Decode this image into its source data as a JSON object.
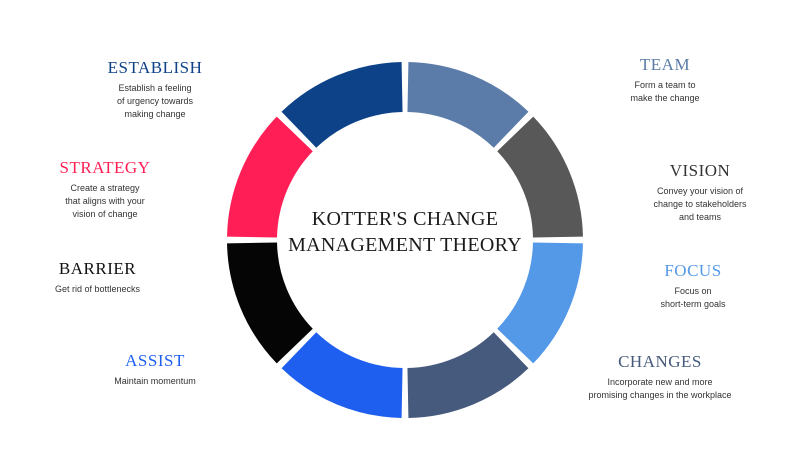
{
  "center": {
    "line1": "KOTTER'S CHANGE",
    "line2": "MANAGEMENT THEORY"
  },
  "steps": [
    {
      "key": "team",
      "title": "TEAM",
      "color": "#5b7ca8",
      "desc": [
        "Form a team to",
        "make the change"
      ]
    },
    {
      "key": "vision",
      "title": "VISION",
      "color": "#585858",
      "desc": [
        "Convey your vision of",
        "change to stakeholders",
        "and teams"
      ]
    },
    {
      "key": "focus",
      "title": "FOCUS",
      "color": "#5499e8",
      "desc": [
        "Focus on",
        "short-term goals"
      ]
    },
    {
      "key": "changes",
      "title": "CHANGES",
      "color": "#455a7c",
      "desc": [
        "Incorporate new and more",
        "promising changes in the workplace"
      ]
    },
    {
      "key": "assist",
      "title": "ASSIST",
      "color": "#1f5fef",
      "desc": [
        "Maintain momentum"
      ]
    },
    {
      "key": "barrier",
      "title": "BARRIER",
      "color": "#050505",
      "desc": [
        "Get rid of bottlenecks"
      ]
    },
    {
      "key": "strategy",
      "title": "STRATEGY",
      "color": "#ff1f56",
      "desc": [
        "Create a strategy",
        "that aligns with your",
        "vision of change"
      ]
    },
    {
      "key": "establish",
      "title": "ESTABLISH",
      "color": "#0d4288",
      "desc": [
        "Establish a feeling",
        "of urgency towards",
        "making change"
      ]
    }
  ]
}
